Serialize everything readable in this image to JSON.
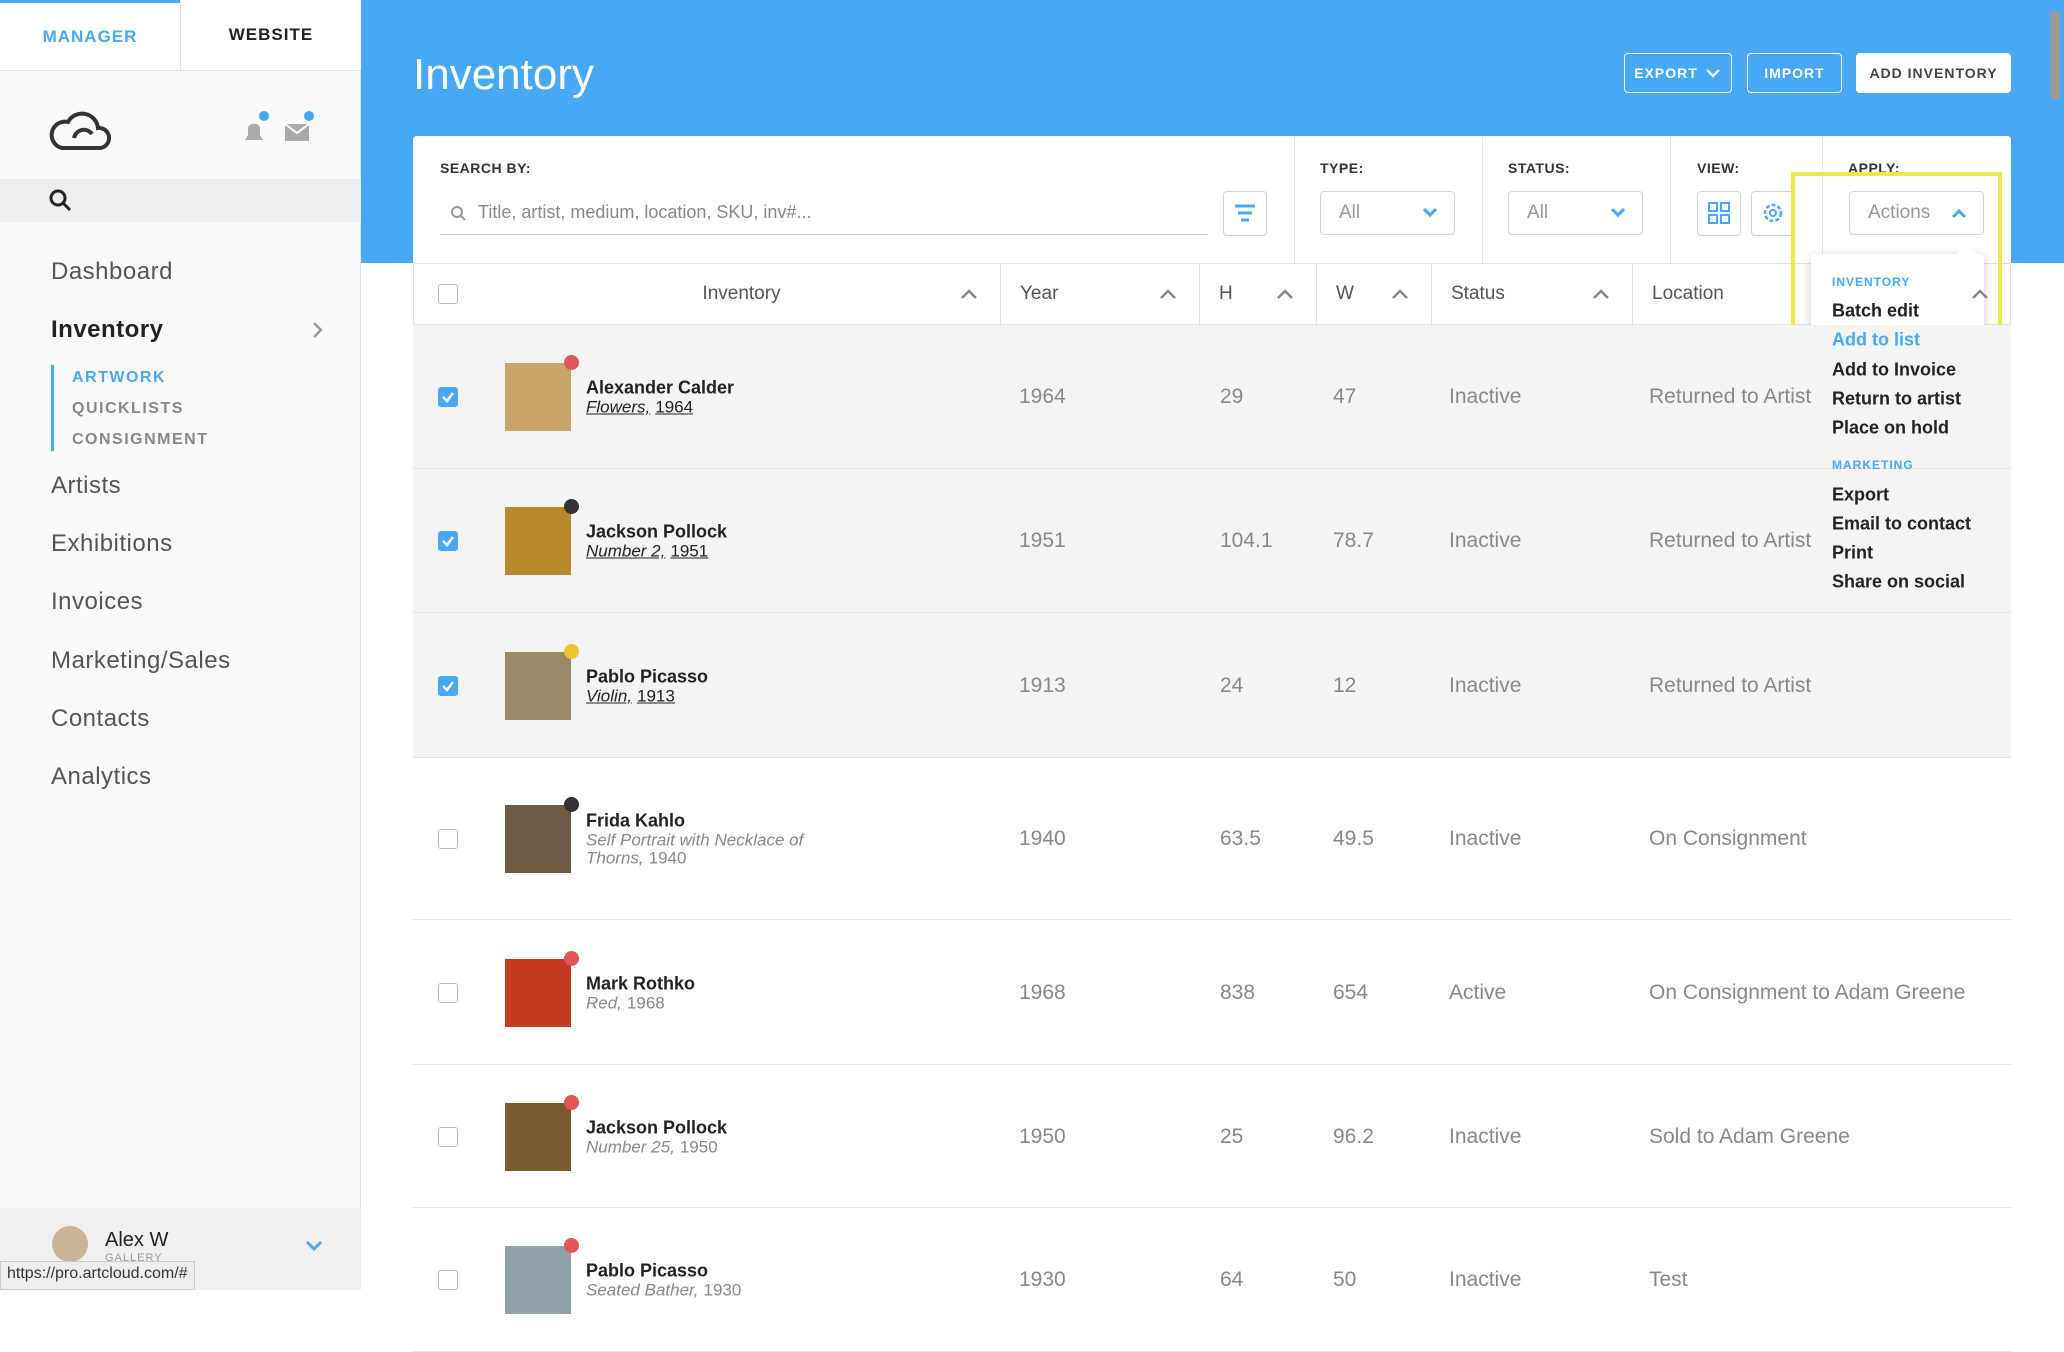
{
  "tabs": [
    "MANAGER",
    "WEBSITE"
  ],
  "nav": [
    "Dashboard",
    "Inventory",
    "Artists",
    "Exhibitions",
    "Invoices",
    "Marketing/Sales",
    "Contacts",
    "Analytics"
  ],
  "subnav": [
    "ARTWORK",
    "QUICKLISTS",
    "CONSIGNMENT"
  ],
  "user": {
    "name": "Alex W",
    "role": "GALLERY"
  },
  "status_url": "https://pro.artcloud.com/#",
  "header": {
    "title": "Inventory",
    "buttons": [
      "EXPORT",
      "IMPORT",
      "ADD INVENTORY"
    ]
  },
  "filters": {
    "search_label": "SEARCH BY:",
    "search_placeholder": "Title, artist, medium, location, SKU, inv#...",
    "type_label": "TYPE:",
    "type_value": "All",
    "status_label": "STATUS:",
    "status_value": "All",
    "view_label": "VIEW:",
    "apply_label": "APPLY:",
    "apply_value": "Actions"
  },
  "table": {
    "columns": [
      "Inventory",
      "Year",
      "H",
      "W",
      "Status",
      "Location"
    ],
    "rows": [
      {
        "artist": "Alexander Calder",
        "title": "Flowers,",
        "date": "1964",
        "year": 1964,
        "h": 29,
        "w": 47,
        "status": "Inactive",
        "location": "Returned to Artist",
        "selected": true,
        "dot": "#e05555"
      },
      {
        "artist": "Jackson Pollock",
        "title": "Number 2,",
        "date": "1951",
        "year": 1951,
        "h": 104.1,
        "w": 78.7,
        "status": "Inactive",
        "location": "Returned to Artist",
        "selected": true,
        "dot": "#333333"
      },
      {
        "artist": "Pablo Picasso",
        "title": "Violin,",
        "date": "1913",
        "year": 1913,
        "h": 24,
        "w": 12,
        "status": "Inactive",
        "location": "Returned to Artist",
        "selected": true,
        "dot": "#f2c12e"
      },
      {
        "artist": "Frida Kahlo",
        "title": "Self Portrait with Necklace of Thorns,",
        "date": "1940",
        "year": 1940,
        "h": 63.5,
        "w": 49.5,
        "status": "Inactive",
        "location": "On Consignment",
        "selected": false,
        "dot": "#333333"
      },
      {
        "artist": "Mark Rothko",
        "title": "Red,",
        "date": "1968",
        "year": 1968,
        "h": 838,
        "w": 654,
        "status": "Active",
        "location": "On Consignment to Adam Greene",
        "selected": false,
        "dot": "#e05555"
      },
      {
        "artist": "Jackson Pollock",
        "title": "Number 25,",
        "date": "1950",
        "year": 1950,
        "h": 25,
        "w": 96.2,
        "status": "Inactive",
        "location": "Sold to Adam Greene",
        "selected": false,
        "dot": "#e05555"
      },
      {
        "artist": "Pablo Picasso",
        "title": "Seated Bather,",
        "date": "1930",
        "year": 1930,
        "h": 64,
        "w": 50,
        "status": "Inactive",
        "location": "Test",
        "selected": false,
        "dot": "#e05555"
      }
    ]
  },
  "actions_menu": {
    "sections": [
      {
        "title": "INVENTORY",
        "items": [
          "Batch edit",
          "Add to list",
          "Add to Invoice",
          "Return to artist",
          "Place on hold"
        ]
      },
      {
        "title": "MARKETING",
        "items": [
          "Export",
          "Email to contact",
          "Print",
          "Share on social"
        ]
      }
    ]
  }
}
